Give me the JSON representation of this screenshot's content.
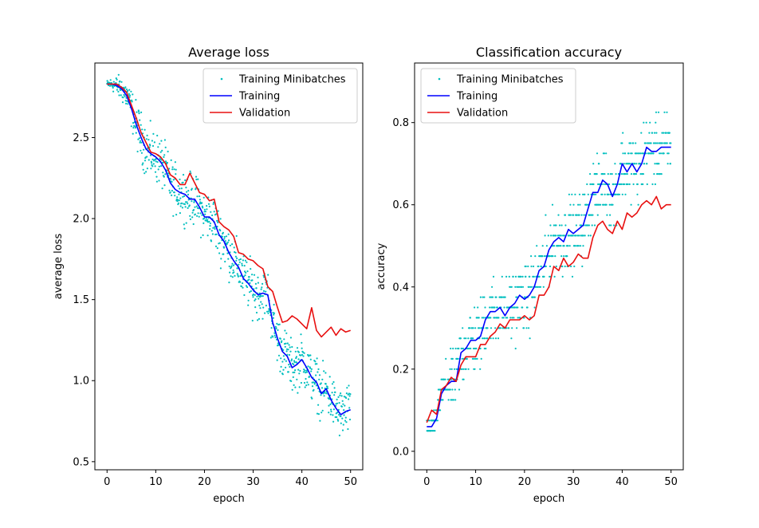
{
  "chart_data": [
    {
      "type": "line",
      "title": "Average loss",
      "xlabel": "epoch",
      "ylabel": "average loss",
      "xlim": [
        -2.5,
        52.5
      ],
      "ylim": [
        0.45,
        2.96
      ],
      "xticks": [
        0,
        10,
        20,
        30,
        40,
        50
      ],
      "yticks": [
        0.5,
        1.0,
        1.5,
        2.0,
        2.5
      ],
      "ytick_labels": [
        "0.5",
        "1.0",
        "1.5",
        "2.0",
        "2.5"
      ],
      "grid": false,
      "legend": {
        "placement": "upper right",
        "entries": [
          "Training Minibatches",
          "Training",
          "Validation"
        ]
      },
      "minibatch_noise": 0.13,
      "series": [
        {
          "name": "Training",
          "kind": "line",
          "color": "#0000ff",
          "x": [
            0,
            1,
            2,
            3,
            4,
            5,
            6,
            7,
            8,
            9,
            10,
            11,
            12,
            13,
            14,
            15,
            16,
            17,
            18,
            19,
            20,
            21,
            22,
            23,
            24,
            25,
            26,
            27,
            28,
            29,
            30,
            31,
            32,
            33,
            34,
            35,
            36,
            37,
            38,
            39,
            40,
            41,
            42,
            43,
            44,
            45,
            46,
            47,
            48,
            49,
            50
          ],
          "y": [
            2.83,
            2.83,
            2.82,
            2.8,
            2.76,
            2.68,
            2.58,
            2.5,
            2.43,
            2.4,
            2.38,
            2.35,
            2.3,
            2.22,
            2.18,
            2.16,
            2.15,
            2.12,
            2.12,
            2.07,
            2.01,
            2.01,
            1.98,
            1.9,
            1.86,
            1.79,
            1.74,
            1.7,
            1.63,
            1.6,
            1.56,
            1.53,
            1.54,
            1.53,
            1.36,
            1.26,
            1.18,
            1.15,
            1.08,
            1.1,
            1.13,
            1.08,
            1.02,
            0.99,
            0.92,
            0.95,
            0.88,
            0.83,
            0.79,
            0.81,
            0.82
          ]
        },
        {
          "name": "Validation",
          "kind": "line",
          "color": "#e81010",
          "x": [
            0,
            1,
            2,
            3,
            4,
            5,
            6,
            7,
            8,
            9,
            10,
            11,
            12,
            13,
            14,
            15,
            16,
            17,
            18,
            19,
            20,
            21,
            22,
            23,
            24,
            25,
            26,
            27,
            28,
            29,
            30,
            31,
            32,
            33,
            34,
            35,
            36,
            37,
            38,
            39,
            40,
            41,
            42,
            43,
            44,
            45,
            46,
            47,
            48,
            49,
            50
          ],
          "y": [
            2.83,
            2.83,
            2.83,
            2.81,
            2.78,
            2.7,
            2.62,
            2.53,
            2.47,
            2.41,
            2.4,
            2.38,
            2.34,
            2.27,
            2.25,
            2.21,
            2.21,
            2.28,
            2.22,
            2.16,
            2.15,
            2.11,
            2.12,
            1.98,
            1.95,
            1.93,
            1.89,
            1.79,
            1.78,
            1.75,
            1.74,
            1.71,
            1.69,
            1.58,
            1.55,
            1.45,
            1.36,
            1.37,
            1.4,
            1.38,
            1.35,
            1.32,
            1.45,
            1.31,
            1.27,
            1.3,
            1.33,
            1.28,
            1.32,
            1.3,
            1.31
          ]
        },
        {
          "name": "Training Minibatches",
          "kind": "scatter",
          "color": "#00bfbf"
        }
      ]
    },
    {
      "type": "line",
      "title": "Classification accuracy",
      "xlabel": "epoch",
      "ylabel": "accuracy",
      "xlim": [
        -2.5,
        52.5
      ],
      "ylim": [
        -0.045,
        0.945
      ],
      "xticks": [
        0,
        10,
        20,
        30,
        40,
        50
      ],
      "yticks": [
        0.0,
        0.2,
        0.4,
        0.6,
        0.8
      ],
      "ytick_labels": [
        "0.0",
        "0.2",
        "0.4",
        "0.6",
        "0.8"
      ],
      "grid": false,
      "legend": {
        "placement": "upper left",
        "entries": [
          "Training Minibatches",
          "Training",
          "Validation"
        ]
      },
      "minibatch_noise": 0.07,
      "minibatch_step": 0.025,
      "series": [
        {
          "name": "Training",
          "kind": "line",
          "color": "#0000ff",
          "x": [
            0,
            1,
            2,
            3,
            4,
            5,
            6,
            7,
            8,
            9,
            10,
            11,
            12,
            13,
            14,
            15,
            16,
            17,
            18,
            19,
            20,
            21,
            22,
            23,
            24,
            25,
            26,
            27,
            28,
            29,
            30,
            31,
            32,
            33,
            34,
            35,
            36,
            37,
            38,
            39,
            40,
            41,
            42,
            43,
            44,
            45,
            46,
            47,
            48,
            49,
            50
          ],
          "y": [
            0.06,
            0.06,
            0.08,
            0.14,
            0.16,
            0.17,
            0.17,
            0.24,
            0.25,
            0.27,
            0.27,
            0.28,
            0.32,
            0.34,
            0.34,
            0.35,
            0.33,
            0.35,
            0.36,
            0.38,
            0.37,
            0.38,
            0.4,
            0.44,
            0.45,
            0.49,
            0.51,
            0.52,
            0.51,
            0.54,
            0.53,
            0.54,
            0.55,
            0.59,
            0.63,
            0.63,
            0.66,
            0.65,
            0.62,
            0.65,
            0.7,
            0.68,
            0.7,
            0.68,
            0.7,
            0.74,
            0.73,
            0.73,
            0.74,
            0.74,
            0.74
          ]
        },
        {
          "name": "Validation",
          "kind": "line",
          "color": "#e81010",
          "x": [
            0,
            1,
            2,
            3,
            4,
            5,
            6,
            7,
            8,
            9,
            10,
            11,
            12,
            13,
            14,
            15,
            16,
            17,
            18,
            19,
            20,
            21,
            22,
            23,
            24,
            25,
            26,
            27,
            28,
            29,
            30,
            31,
            32,
            33,
            34,
            35,
            36,
            37,
            38,
            39,
            40,
            41,
            42,
            43,
            44,
            45,
            46,
            47,
            48,
            49,
            50
          ],
          "y": [
            0.07,
            0.1,
            0.09,
            0.15,
            0.16,
            0.18,
            0.17,
            0.21,
            0.23,
            0.23,
            0.23,
            0.26,
            0.26,
            0.28,
            0.29,
            0.31,
            0.3,
            0.32,
            0.32,
            0.32,
            0.33,
            0.32,
            0.33,
            0.38,
            0.38,
            0.4,
            0.45,
            0.44,
            0.47,
            0.45,
            0.46,
            0.48,
            0.47,
            0.47,
            0.52,
            0.55,
            0.56,
            0.54,
            0.53,
            0.56,
            0.54,
            0.58,
            0.57,
            0.58,
            0.6,
            0.61,
            0.6,
            0.62,
            0.59,
            0.6,
            0.6
          ]
        },
        {
          "name": "Training Minibatches",
          "kind": "scatter",
          "color": "#00bfbf"
        }
      ]
    }
  ]
}
